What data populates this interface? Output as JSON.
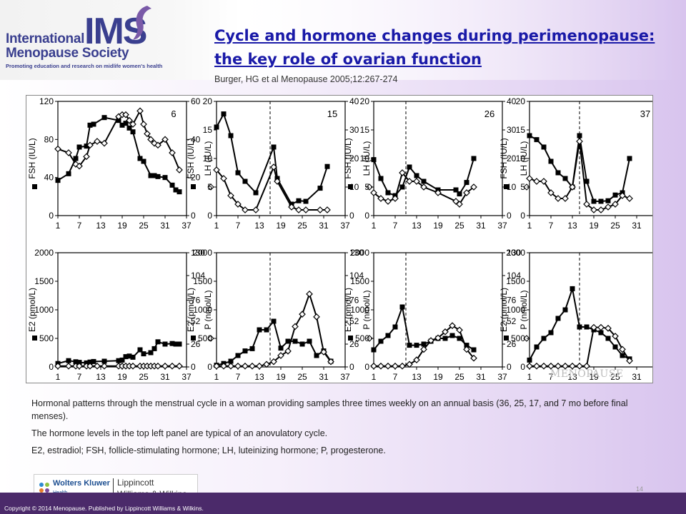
{
  "header": {
    "logo_international": "International",
    "logo_ims": "IMS",
    "logo_menopause_society": "Menopause Society",
    "logo_tagline": "Promoting education and research on midlife women's health",
    "title": "Cycle and hormone changes during perimenopause: the key role of ovarian function",
    "citation": "Burger, HG et al  Menopause 2005;12:267-274"
  },
  "chart_data": [
    {
      "type": "line",
      "panel": "top-1",
      "label": "6",
      "x_ticks": [
        1,
        7,
        13,
        19,
        25,
        31,
        37
      ],
      "left_axis": {
        "label": "FSH (IU/L)",
        "ticks": [
          0,
          40,
          80,
          120
        ],
        "range": [
          0,
          120
        ]
      },
      "right_axis": {
        "label": "LH (IU/L)",
        "ticks": [
          0,
          20,
          40,
          60
        ],
        "range": [
          0,
          60
        ]
      },
      "series": [
        {
          "axis": "left",
          "marker": "square",
          "x": [
            1,
            4,
            6,
            7,
            9,
            10,
            11,
            14,
            18,
            19,
            20,
            21,
            22,
            24,
            25,
            27,
            28,
            29,
            31,
            33,
            34,
            35
          ],
          "y": [
            37,
            44,
            60,
            72,
            73,
            95,
            96,
            103,
            100,
            95,
            97,
            92,
            88,
            60,
            57,
            42,
            42,
            41,
            40,
            32,
            27,
            25
          ]
        },
        {
          "axis": "right",
          "marker": "diamond",
          "x": [
            1,
            4,
            6,
            7,
            9,
            10,
            12,
            14,
            18,
            19,
            20,
            21,
            22,
            24,
            25,
            26,
            27,
            28,
            29,
            31,
            33,
            35
          ],
          "y": [
            35,
            33,
            27,
            26,
            31,
            37,
            39,
            38,
            52,
            53,
            53,
            50,
            48,
            55,
            48,
            43,
            40,
            38,
            37,
            40,
            33,
            24
          ]
        }
      ]
    },
    {
      "type": "line",
      "panel": "top-2",
      "label": "15",
      "vline": 16,
      "x_ticks": [
        1,
        7,
        13,
        19,
        25,
        31,
        37
      ],
      "left_axis": {
        "label": "FSH (IU/L)",
        "ticks": [
          0,
          5,
          10,
          15,
          20
        ],
        "range": [
          0,
          20
        ]
      },
      "right_axis": {
        "label": "LH (IU/L)",
        "ticks": [
          0,
          10,
          20,
          30,
          40
        ],
        "range": [
          0,
          40
        ]
      },
      "series": [
        {
          "axis": "left",
          "marker": "square",
          "x": [
            1,
            3,
            5,
            7,
            9,
            12,
            17,
            18,
            22,
            24,
            26,
            30,
            32
          ],
          "y": [
            15.5,
            17.8,
            14,
            7.5,
            6,
            4,
            12,
            6.5,
            2,
            2.6,
            2.5,
            4.8,
            8.6
          ]
        },
        {
          "axis": "right",
          "marker": "diamond",
          "x": [
            1,
            3,
            5,
            7,
            9,
            12,
            17,
            18,
            22,
            24,
            26,
            30,
            32
          ],
          "y": [
            16,
            13,
            7,
            4,
            2,
            2,
            17,
            12,
            3,
            2,
            2,
            2,
            2
          ]
        }
      ]
    },
    {
      "type": "line",
      "panel": "top-3",
      "label": "26",
      "vline": 10,
      "x_ticks": [
        1,
        7,
        13,
        19,
        25,
        31,
        37
      ],
      "left_axis": {
        "label": "FSH (IU/L)",
        "ticks": [
          0,
          5,
          10,
          15,
          20
        ],
        "range": [
          0,
          20
        ]
      },
      "right_axis": {
        "label": "LH (IU/L)",
        "ticks": [
          0,
          10,
          20,
          30,
          40
        ],
        "range": [
          0,
          40
        ]
      },
      "series": [
        {
          "axis": "left",
          "marker": "square",
          "x": [
            1,
            3,
            5,
            7,
            9,
            11,
            13,
            15,
            19,
            24,
            25,
            27,
            29
          ],
          "y": [
            9.8,
            6.5,
            4,
            3.5,
            5,
            8.5,
            7,
            6,
            4.5,
            4.5,
            3.8,
            5.8,
            10
          ]
        },
        {
          "axis": "right",
          "marker": "diamond",
          "x": [
            1,
            3,
            5,
            7,
            9,
            11,
            13,
            15,
            19,
            24,
            25,
            27,
            29
          ],
          "y": [
            8,
            6,
            5,
            6,
            15,
            12,
            12,
            10,
            8,
            5,
            4,
            8,
            10
          ]
        }
      ]
    },
    {
      "type": "line",
      "panel": "top-4",
      "label": "37",
      "vline": 15,
      "x_ticks": [
        1,
        7,
        13,
        19,
        25,
        31,
        37
      ],
      "left_axis": {
        "label": "FSH (IU/L)",
        "ticks": [
          0,
          5,
          10,
          15,
          20
        ],
        "range": [
          0,
          20
        ]
      },
      "right_axis": {
        "label": "LH (IU/L)",
        "ticks": [
          0,
          10,
          20,
          30,
          40
        ],
        "range": [
          0,
          40
        ]
      },
      "series": [
        {
          "axis": "left",
          "marker": "square",
          "x": [
            1,
            3,
            5,
            7,
            9,
            11,
            13,
            15,
            17,
            19,
            21,
            23,
            25,
            27,
            29
          ],
          "y": [
            14,
            13.3,
            12,
            9.5,
            7.5,
            6.5,
            5,
            14,
            6,
            2.5,
            2.5,
            2.6,
            3.6,
            4,
            10
          ]
        },
        {
          "axis": "right",
          "marker": "diamond",
          "x": [
            1,
            3,
            5,
            7,
            9,
            11,
            13,
            15,
            17,
            19,
            21,
            23,
            25,
            27,
            29
          ],
          "y": [
            13,
            12,
            12,
            8,
            6,
            6,
            10,
            26,
            4,
            2,
            2,
            3,
            4,
            7,
            6
          ]
        }
      ]
    },
    {
      "type": "line",
      "panel": "bottom-1",
      "x_ticks": [
        1,
        7,
        13,
        19,
        25,
        31,
        37
      ],
      "left_axis": {
        "label": "E2 (pmol/L)",
        "ticks": [
          0,
          500,
          1000,
          1500,
          2000
        ],
        "range": [
          0,
          2000
        ]
      },
      "right_axis": {
        "label": "P (nmol/L)",
        "ticks": [
          0,
          26,
          52,
          76,
          104,
          130
        ],
        "range": [
          0,
          130
        ]
      },
      "series": [
        {
          "axis": "left",
          "marker": "square",
          "x": [
            1,
            4,
            6,
            7,
            9,
            10,
            11,
            14,
            18,
            19,
            20,
            21,
            22,
            24,
            25,
            27,
            28,
            29,
            31,
            33,
            34,
            35
          ],
          "y": [
            60,
            110,
            90,
            80,
            70,
            85,
            95,
            100,
            110,
            120,
            180,
            190,
            170,
            300,
            230,
            250,
            320,
            440,
            400,
            410,
            400,
            400
          ]
        },
        {
          "axis": "right",
          "marker": "diamond",
          "x": [
            1,
            4,
            6,
            7,
            9,
            10,
            12,
            14,
            18,
            19,
            20,
            21,
            22,
            24,
            25,
            26,
            27,
            28,
            29,
            31,
            33,
            35
          ],
          "y": [
            1,
            1,
            1,
            1,
            1,
            1,
            1,
            1,
            1,
            1,
            1,
            1,
            1,
            1,
            1,
            1,
            1,
            1,
            1,
            1,
            1,
            1
          ]
        }
      ]
    },
    {
      "type": "line",
      "panel": "bottom-2",
      "vline": 16,
      "x_ticks": [
        1,
        7,
        13,
        19,
        25,
        31,
        37
      ],
      "left_axis": {
        "label": "E2 (pmol/L)",
        "ticks": [
          0,
          500,
          1000,
          1500,
          2000
        ],
        "range": [
          0,
          2000
        ]
      },
      "right_axis": {
        "label": "P (nmol/L)",
        "ticks": [
          0,
          26,
          52,
          76,
          104,
          130
        ],
        "range": [
          0,
          130
        ]
      },
      "series": [
        {
          "axis": "left",
          "marker": "square",
          "x": [
            1,
            3,
            5,
            7,
            9,
            11,
            13,
            15,
            17,
            19,
            21,
            23,
            25,
            27,
            29,
            31,
            33
          ],
          "y": [
            30,
            60,
            100,
            200,
            280,
            320,
            650,
            650,
            800,
            330,
            450,
            450,
            400,
            450,
            200,
            280,
            100
          ]
        },
        {
          "axis": "right",
          "marker": "diamond",
          "x": [
            1,
            3,
            5,
            7,
            9,
            11,
            13,
            15,
            17,
            19,
            21,
            23,
            25,
            27,
            29,
            31,
            33
          ],
          "y": [
            1,
            1,
            1,
            1,
            1,
            1,
            1,
            3,
            6,
            13,
            18,
            46,
            60,
            83,
            57,
            17,
            6
          ]
        }
      ]
    },
    {
      "type": "line",
      "panel": "bottom-3",
      "vline": 10,
      "x_ticks": [
        1,
        7,
        13,
        19,
        25,
        31,
        37
      ],
      "left_axis": {
        "label": "E2 (pmol/L)",
        "ticks": [
          0,
          500,
          1000,
          1500,
          2000
        ],
        "range": [
          0,
          2000
        ]
      },
      "right_axis": {
        "label": "P (nmol/L)",
        "ticks": [
          0,
          26,
          52,
          76,
          104,
          130
        ],
        "range": [
          0,
          130
        ]
      },
      "series": [
        {
          "axis": "left",
          "marker": "square",
          "x": [
            1,
            3,
            5,
            7,
            9,
            11,
            13,
            15,
            17,
            19,
            21,
            23,
            25,
            27,
            29
          ],
          "y": [
            300,
            450,
            550,
            700,
            1050,
            380,
            380,
            400,
            450,
            500,
            500,
            550,
            500,
            380,
            300
          ]
        },
        {
          "axis": "right",
          "marker": "diamond",
          "x": [
            1,
            3,
            5,
            7,
            9,
            11,
            13,
            15,
            17,
            19,
            21,
            23,
            25,
            27,
            29
          ],
          "y": [
            1,
            1,
            1,
            1,
            1,
            3,
            8,
            20,
            30,
            33,
            40,
            47,
            42,
            20,
            10
          ]
        }
      ]
    },
    {
      "type": "line",
      "panel": "bottom-4",
      "vline": 15,
      "x_ticks": [
        1,
        7,
        13,
        19,
        25,
        31,
        37
      ],
      "left_axis": {
        "label": "E2 (pmol/L)",
        "ticks": [
          0,
          500,
          1000,
          1500,
          2000
        ],
        "range": [
          0,
          2000
        ]
      },
      "right_axis": {
        "label": "P (nmol/L)",
        "ticks": [
          0,
          26,
          52,
          76,
          104,
          130
        ],
        "range": [
          0,
          130
        ]
      },
      "series": [
        {
          "axis": "left",
          "marker": "square",
          "x": [
            1,
            3,
            5,
            7,
            9,
            11,
            13,
            15,
            17,
            19,
            21,
            23,
            25,
            27,
            29
          ],
          "y": [
            120,
            350,
            500,
            600,
            850,
            1000,
            1370,
            700,
            700,
            650,
            600,
            500,
            350,
            200,
            140
          ]
        },
        {
          "axis": "right",
          "marker": "diamond",
          "x": [
            1,
            3,
            5,
            7,
            9,
            11,
            13,
            15,
            17,
            19,
            21,
            23,
            25,
            27,
            29
          ],
          "y": [
            1,
            1,
            1,
            1,
            1,
            1,
            1,
            1,
            1,
            45,
            45,
            44,
            35,
            20,
            7
          ]
        }
      ]
    }
  ],
  "figure": {
    "watermark": "MENOPAUSE"
  },
  "caption": {
    "p1": "Hormonal patterns through the menstrual cycle in a woman providing samples three times weekly on an annual basis (36, 25, 17, and 7 mo before final menses).",
    "p2": "The hormone levels in the top left panel are typical of an anovulatory cycle.",
    "p3": "E2, estradiol; FSH, follicle-stimulating hormone; LH, luteinizing hormone; P, progesterone."
  },
  "page_number": "14",
  "publisher": {
    "wk": "Wolters Kluwer",
    "health": "Health",
    "lippincott": "Lippincott",
    "ww": "Williams & Wilkins"
  },
  "footer": {
    "copyright": "Copyright © 2014 Menopause. Published by Lippincott Williams & Wilkins."
  }
}
